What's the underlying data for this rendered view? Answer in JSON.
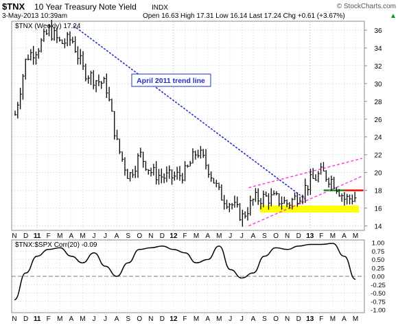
{
  "header": {
    "ticker": "$TNX",
    "name": "10 Year Treasury Note Yield",
    "exchange": "INDX",
    "date": "3-May-2013 10:39am",
    "watermark": "© StockCharts.com",
    "quote": "Open 16.63  High 17.31  Low 16.14  Last 17.24  Chg +0.61 (+3.67%)",
    "quote_dir": "▲"
  },
  "colors": {
    "price_bar": "#000000",
    "trendline": "#1f2fc8",
    "channel": "#ff33dd",
    "support_zone": "#ffff00",
    "green_level": "#009900",
    "red_level": "#ff0000",
    "corr_line": "#000000"
  },
  "chart_data": [
    {
      "type": "bar",
      "title": "$TNX (Weekly) 17.24",
      "ylim": [
        13.5,
        37
      ],
      "y_ticks": [
        14,
        16,
        18,
        20,
        22,
        24,
        26,
        28,
        30,
        32,
        34,
        36
      ],
      "x_ticks": [
        "N",
        "D",
        "11",
        "F",
        "M",
        "A",
        "M",
        "J",
        "J",
        "A",
        "S",
        "O",
        "N",
        "D",
        "12",
        "F",
        "M",
        "A",
        "M",
        "J",
        "J",
        "A",
        "S",
        "O",
        "N",
        "D",
        "13",
        "F",
        "M",
        "A",
        "M"
      ],
      "annotation": "April 2011 trend line",
      "series": [
        {
          "x": [
            "Nov 2010",
            "Dec 2010",
            "Jan 2011",
            "Feb 2011",
            "Mar 2011",
            "Apr 2011",
            "May 2011",
            "Jun 2011",
            "Jul 2011",
            "Aug 2011",
            "Sep 2011",
            "Oct 2011",
            "Nov 2011",
            "Dec 2011",
            "Jan 2012",
            "Feb 2012",
            "Mar 2012",
            "Apr 2012",
            "May 2012",
            "Jun 2012",
            "Jul 2012",
            "Aug 2012",
            "Sep 2012",
            "Oct 2012",
            "Nov 2012",
            "Dec 2012",
            "Jan 2013",
            "Feb 2013",
            "Mar 2013",
            "Apr 2013",
            "May 2013"
          ],
          "values": [
            26.5,
            33.0,
            34.0,
            36.0,
            34.5,
            35.0,
            31.5,
            30.5,
            29.8,
            23.0,
            19.5,
            22.0,
            20.0,
            19.5,
            19.5,
            20.0,
            22.5,
            20.5,
            17.5,
            16.5,
            15.0,
            17.0,
            17.2,
            17.0,
            16.5,
            17.5,
            19.0,
            20.0,
            19.0,
            17.0,
            17.24
          ]
        }
      ]
    },
    {
      "type": "line",
      "title": "$TNX:$SPX Corr(20) -0.09",
      "ylim": [
        -1.0,
        1.0
      ],
      "y_ticks": [
        "1.00",
        "0.75",
        "0.50",
        "0.25",
        "0.00",
        "-0.25",
        "-0.50",
        "-0.75",
        "-1.00"
      ],
      "x_ticks": [
        "N",
        "D",
        "11",
        "F",
        "M",
        "A",
        "M",
        "J",
        "J",
        "A",
        "S",
        "O",
        "N",
        "D",
        "12",
        "F",
        "M",
        "A",
        "M",
        "J",
        "J",
        "A",
        "S",
        "O",
        "N",
        "D",
        "13",
        "F",
        "M",
        "A",
        "M"
      ],
      "series": [
        {
          "x": [
            "Nov 2010",
            "Dec 2010",
            "Jan 2011",
            "Feb 2011",
            "Mar 2011",
            "Apr 2011",
            "May 2011",
            "Jun 2011",
            "Jul 2011",
            "Aug 2011",
            "Sep 2011",
            "Oct 2011",
            "Nov 2011",
            "Dec 2011",
            "Jan 2012",
            "Feb 2012",
            "Mar 2012",
            "Apr 2012",
            "May 2012",
            "Jun 2012",
            "Jul 2012",
            "Aug 2012",
            "Sep 2012",
            "Oct 2012",
            "Nov 2012",
            "Dec 2012",
            "Jan 2013",
            "Feb 2013",
            "Mar 2013",
            "Apr 2013",
            "May 2013"
          ],
          "values": [
            -0.7,
            0.1,
            0.6,
            0.8,
            0.85,
            0.6,
            0.4,
            0.7,
            0.3,
            0.0,
            0.4,
            0.8,
            0.85,
            0.9,
            0.8,
            0.7,
            0.4,
            0.5,
            0.9,
            0.2,
            -0.05,
            0.1,
            0.6,
            0.85,
            0.8,
            0.9,
            0.95,
            0.95,
            0.98,
            0.6,
            -0.09
          ]
        }
      ]
    }
  ]
}
